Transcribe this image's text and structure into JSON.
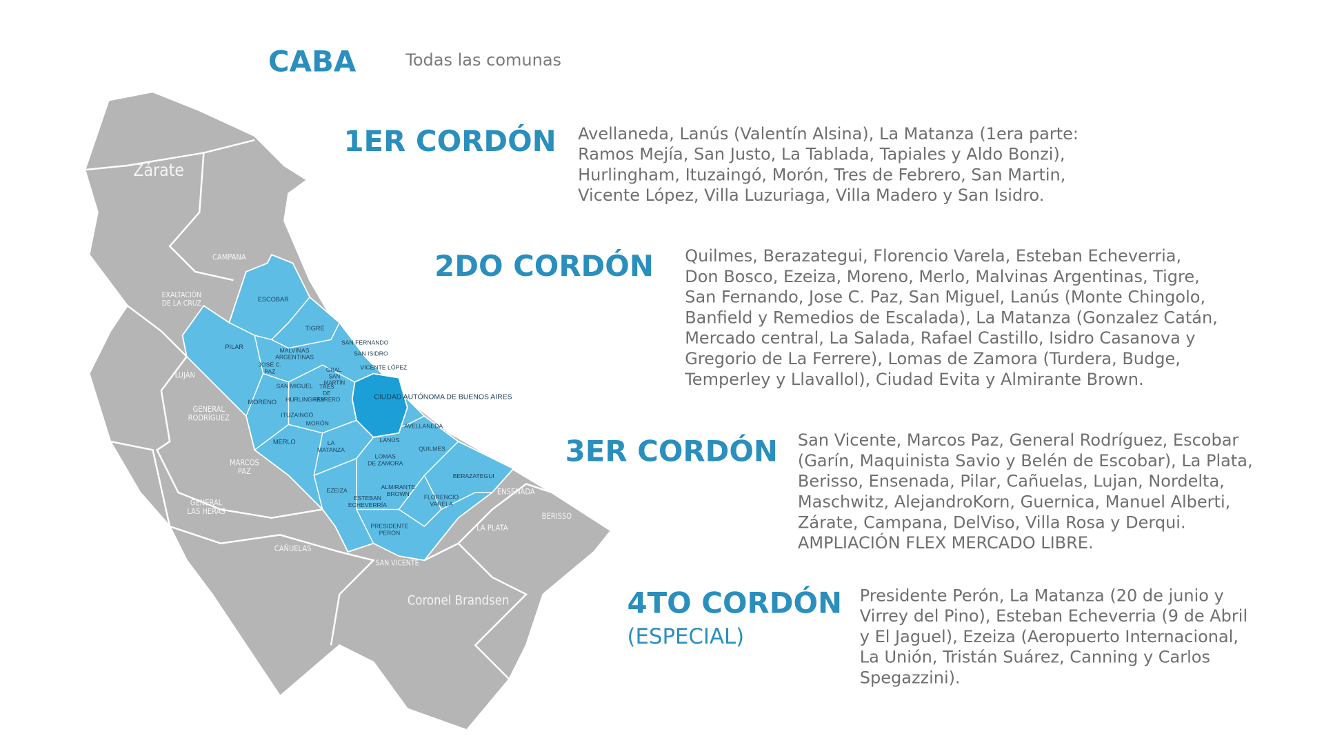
{
  "header": {
    "title": "CABA",
    "caption": "Todas las comunas"
  },
  "zones": [
    {
      "title": "1ER CORDÓN",
      "lines": [
        "Avellaneda, Lanús (Valentín Alsina), La Matanza (1era parte:",
        "Ramos Mejía, San Justo, La Tablada, Tapiales y Aldo Bonzi),",
        "Hurlingham, Ituzaingó, Morón, Tres de Febrero, San Martin,",
        "Vicente López, Villa Luzuriaga, Villa Madero y San Isidro."
      ]
    },
    {
      "title": "2DO CORDÓN",
      "lines": [
        "Quilmes, Berazategui, Florencio Varela, Esteban Echeverria,",
        "Don  Bosco, Ezeiza, Moreno, Merlo, Malvinas Argentinas, Tigre,",
        "San Fernando, Jose C. Paz, San Miguel, Lanús (Monte Chingolo,",
        "Banfield y Remedios de Escalada), La Matanza (Gonzalez Catán,",
        "Mercado central, La Salada, Rafael Castillo, Isidro Casanova y",
        "Gregorio de La Ferrere), Lomas de Zamora (Turdera, Budge,",
        "Temperley y Llavallol), Ciudad Evita y Almirante Brown."
      ]
    },
    {
      "title": "3ER CORDÓN",
      "lines": [
        "San Vicente, Marcos Paz, General Rodríguez, Escobar",
        "(Garín, Maquinista Savio y Belén de Escobar), La Plata,",
        "Berisso, Ensenada, Pilar, Cañuelas, Lujan, Nordelta,",
        "Maschwitz, AlejandroKorn, Guernica, Manuel Alberti,",
        "Zárate, Campana, DelViso, Villa Rosa y Derqui.",
        "AMPLIACIÓN FLEX MERCADO LIBRE."
      ]
    },
    {
      "title": "4TO CORDÓN",
      "subtitle": "(ESPECIAL)",
      "lines": [
        "Presidente Perón, La Matanza (20 de junio y",
        "Virrey del Pino), Esteban Echeverria (9 de Abril",
        "y El Jaguel), Ezeiza (Aeropuerto Internacional,",
        "La Unión, Tristán Suárez, Canning y Carlos",
        "Spegazzini)."
      ]
    }
  ],
  "map": {
    "labels": [
      [
        "Zárate"
      ],
      [
        "CAMPANA"
      ],
      [
        "EXALTACIÓN",
        "DE LA CRUZ"
      ],
      [
        "LUJÁN"
      ],
      [
        "GENERAL",
        "RODRÍGUEZ"
      ],
      [
        "MARCOS",
        "PAZ"
      ],
      [
        "GENERAL",
        "LAS HERAS"
      ],
      [
        "CAÑUELAS"
      ],
      [
        "SAN VICENTE"
      ],
      [
        "Coronel Brandsen"
      ],
      [
        "LA PLATA"
      ],
      [
        "BERISSO"
      ],
      [
        "ENSENADA"
      ],
      [
        "ESCOBAR"
      ],
      [
        "TIGRE"
      ],
      [
        "PILAR"
      ],
      [
        "MALVINAS",
        "ARGENTINAS"
      ],
      [
        "JOSÉ C.",
        "PAZ"
      ],
      [
        "SAN FERNANDO"
      ],
      [
        "SAN ISIDRO"
      ],
      [
        "VICENTE LÓPEZ"
      ],
      [
        "GRAL.",
        "SAN",
        "MARTÍN"
      ],
      [
        "SAN MIGUEL"
      ],
      [
        "TRES",
        "DE",
        "FEBRERO"
      ],
      [
        "HURLINGHAM"
      ],
      [
        "MORENO"
      ],
      [
        "ITUZAINGÓ"
      ],
      [
        "MORÓN"
      ],
      [
        "CIUDAD AUTÓNOMA DE BUENOS AIRES"
      ],
      [
        "AVELLANEDA"
      ],
      [
        "MERLO"
      ],
      [
        "LANÚS"
      ],
      [
        "LA",
        "MATANZA"
      ],
      [
        "QUILMES"
      ],
      [
        "LOMAS",
        "DE ZAMORA"
      ],
      [
        "EZEIZA"
      ],
      [
        "ALMIRANTE",
        "BROWN"
      ],
      [
        "ESTEBAN",
        "ECHEVERRÍA"
      ],
      [
        "FLORENCIO",
        "VARELA"
      ],
      [
        "BERAZATEGUI"
      ],
      [
        "PRESIDENTE",
        "PERÓN"
      ]
    ]
  }
}
